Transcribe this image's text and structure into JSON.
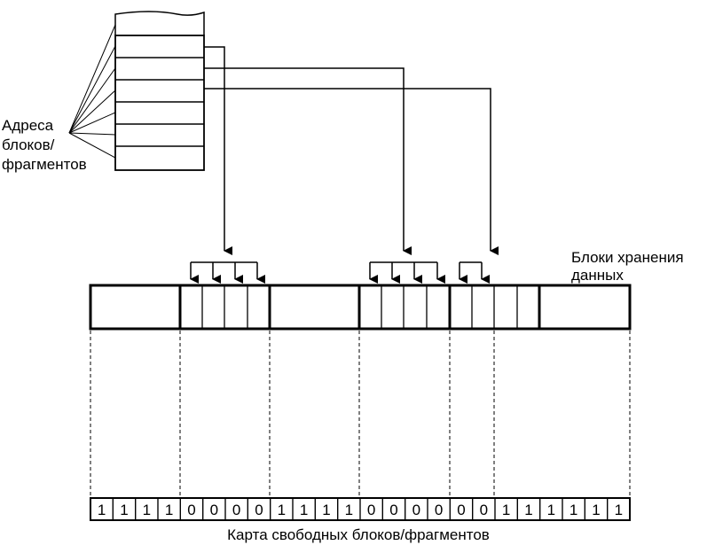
{
  "labels": {
    "addresses": [
      "Адреса",
      "блоков/",
      "фрагментов"
    ],
    "storage": [
      "Блоки хранения",
      "данных"
    ],
    "free_map": "Карта свободных блоков/фрагментов"
  },
  "free_map_bits": [
    "1",
    "1",
    "1",
    "1",
    "0",
    "0",
    "0",
    "0",
    "1",
    "1",
    "1",
    "1",
    "0",
    "0",
    "0",
    "0",
    "0",
    "0",
    "1",
    "1",
    "1",
    "1",
    "1",
    "1"
  ]
}
